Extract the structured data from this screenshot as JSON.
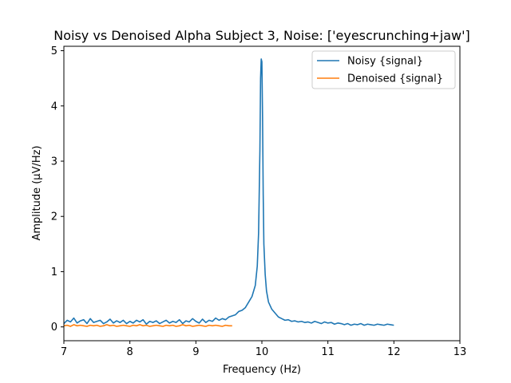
{
  "chart_data": {
    "type": "line",
    "title": "Noisy vs Denoised Alpha Subject 3, Noise: ['eyescrunching+jaw']",
    "xlabel": "Frequency (Hz)",
    "ylabel": "Amplitude (μV/Hz)",
    "xlim": [
      7,
      13
    ],
    "ylim": [
      -0.25,
      5.08
    ],
    "xticks": [
      "7",
      "8",
      "9",
      "10",
      "11",
      "12",
      "13"
    ],
    "yticks": [
      "0",
      "1",
      "2",
      "3",
      "4",
      "5"
    ],
    "grid": false,
    "legend_position": "top-right",
    "series": [
      {
        "name": "Noisy {signal}",
        "color": "#1f77b4",
        "x": [
          7.0,
          7.05,
          7.1,
          7.15,
          7.2,
          7.25,
          7.3,
          7.35,
          7.4,
          7.45,
          7.5,
          7.55,
          7.6,
          7.65,
          7.7,
          7.75,
          7.8,
          7.85,
          7.9,
          7.95,
          8.0,
          8.05,
          8.1,
          8.15,
          8.2,
          8.25,
          8.3,
          8.35,
          8.4,
          8.45,
          8.5,
          8.55,
          8.6,
          8.65,
          8.7,
          8.75,
          8.8,
          8.85,
          8.9,
          8.95,
          9.0,
          9.05,
          9.1,
          9.15,
          9.2,
          9.25,
          9.3,
          9.35,
          9.4,
          9.45,
          9.5,
          9.55,
          9.6,
          9.65,
          9.7,
          9.75,
          9.8,
          9.85,
          9.9,
          9.93,
          9.95,
          9.97,
          9.98,
          9.99,
          10.0,
          10.01,
          10.02,
          10.03,
          10.05,
          10.07,
          10.1,
          10.15,
          10.2,
          10.25,
          10.3,
          10.35,
          10.4,
          10.45,
          10.5,
          10.55,
          10.6,
          10.65,
          10.7,
          10.75,
          10.8,
          10.85,
          10.9,
          10.95,
          11.0,
          11.05,
          11.1,
          11.15,
          11.2,
          11.25,
          11.3,
          11.35,
          11.4,
          11.45,
          11.5,
          11.55,
          11.6,
          11.65,
          11.7,
          11.75,
          11.8,
          11.85,
          11.9,
          11.95,
          12.0
        ],
        "y": [
          0.06,
          0.12,
          0.09,
          0.16,
          0.07,
          0.11,
          0.13,
          0.06,
          0.15,
          0.08,
          0.1,
          0.12,
          0.06,
          0.09,
          0.14,
          0.07,
          0.11,
          0.08,
          0.12,
          0.06,
          0.1,
          0.07,
          0.12,
          0.09,
          0.13,
          0.05,
          0.1,
          0.08,
          0.11,
          0.06,
          0.09,
          0.12,
          0.07,
          0.1,
          0.08,
          0.13,
          0.06,
          0.11,
          0.09,
          0.15,
          0.1,
          0.07,
          0.14,
          0.08,
          0.12,
          0.1,
          0.16,
          0.12,
          0.15,
          0.13,
          0.18,
          0.2,
          0.22,
          0.28,
          0.3,
          0.35,
          0.45,
          0.55,
          0.75,
          1.1,
          1.7,
          3.2,
          4.5,
          4.85,
          4.8,
          3.8,
          2.4,
          1.5,
          0.95,
          0.65,
          0.45,
          0.32,
          0.25,
          0.18,
          0.15,
          0.12,
          0.13,
          0.1,
          0.11,
          0.09,
          0.1,
          0.08,
          0.09,
          0.07,
          0.1,
          0.08,
          0.06,
          0.09,
          0.07,
          0.08,
          0.05,
          0.07,
          0.06,
          0.04,
          0.06,
          0.03,
          0.05,
          0.04,
          0.06,
          0.03,
          0.05,
          0.04,
          0.03,
          0.05,
          0.04,
          0.03,
          0.05,
          0.04,
          0.03
        ]
      },
      {
        "name": "Denoised {signal}",
        "color": "#ff7f0e",
        "x": [
          7.0,
          7.05,
          7.1,
          7.15,
          7.2,
          7.25,
          7.3,
          7.35,
          7.4,
          7.45,
          7.5,
          7.55,
          7.6,
          7.65,
          7.7,
          7.75,
          7.8,
          7.85,
          7.9,
          7.95,
          8.0,
          8.05,
          8.1,
          8.15,
          8.2,
          8.25,
          8.3,
          8.35,
          8.4,
          8.45,
          8.5,
          8.55,
          8.6,
          8.65,
          8.7,
          8.75,
          8.8,
          8.85,
          8.9,
          8.95,
          9.0,
          9.05,
          9.1,
          9.15,
          9.2,
          9.25,
          9.3,
          9.35,
          9.4,
          9.45,
          9.5,
          9.55
        ],
        "y": [
          0.02,
          0.03,
          0.01,
          0.04,
          0.02,
          0.03,
          0.02,
          0.01,
          0.03,
          0.02,
          0.03,
          0.01,
          0.02,
          0.04,
          0.02,
          0.03,
          0.01,
          0.02,
          0.03,
          0.02,
          0.01,
          0.03,
          0.02,
          0.04,
          0.02,
          0.03,
          0.01,
          0.02,
          0.03,
          0.02,
          0.01,
          0.03,
          0.02,
          0.03,
          0.01,
          0.02,
          0.04,
          0.02,
          0.03,
          0.01,
          0.02,
          0.03,
          0.02,
          0.01,
          0.03,
          0.02,
          0.03,
          0.02,
          0.01,
          0.03,
          0.02,
          0.02
        ]
      }
    ]
  }
}
